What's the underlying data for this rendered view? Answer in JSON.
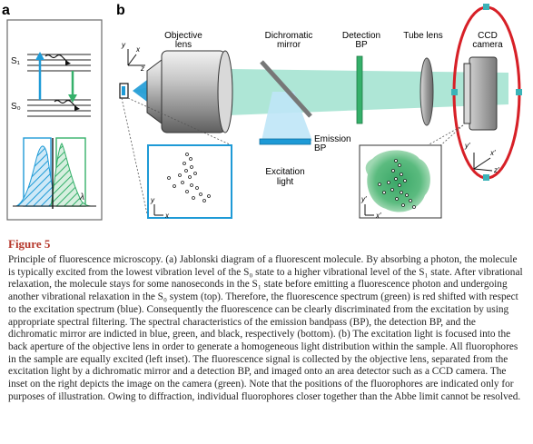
{
  "panel_a": {
    "letter": "a",
    "s1": "S₁",
    "s0": "S₀",
    "lambda": "λ",
    "colors": {
      "excitation": "#1f9bd7",
      "emission": "#35b06a",
      "box_border": "#6a6a6a"
    }
  },
  "panel_b": {
    "letter": "b",
    "labels": {
      "objective": [
        "Objective",
        "lens"
      ],
      "dichroic": [
        "Dichromatic",
        "mirror"
      ],
      "detection": [
        "Detection",
        "BP"
      ],
      "tube": "Tube lens",
      "ccd": [
        "CCD",
        "camera"
      ],
      "emission": [
        "Emission",
        "BP"
      ],
      "excitation": [
        "Excitation",
        "light"
      ]
    },
    "axes": {
      "x": "x",
      "y": "y",
      "z": "z",
      "xp": "x′",
      "yp": "y′",
      "zp": "z′"
    },
    "colors": {
      "beam": "#7fd3c0",
      "excitation": "#8fd0ef",
      "camera_ring": "#d72027",
      "inset_blue": "#1e9ad6",
      "inset_green": "#3aa667"
    }
  },
  "caption": {
    "title": "Figure 5",
    "body": "Principle of fluorescence microscopy. (a) Jablonski diagram of a fluorescent molecule. By absorbing a photon, the molecule is typically excited from the lowest vibration level of the S₀ state to a higher vibrational level of the S₁ state. After vibrational relaxation, the molecule stays for some nanoseconds in the S₁ state before emitting a fluorescence photon and undergoing another vibrational relaxation in the S₀ system (top). Therefore, the fluorescence spectrum (green) is red shifted with respect to the excitation spectrum (blue). Consequently the fluorescence can be clearly discriminated from the excitation by using appropriate spectral filtering. The spectral characteristics of the emission bandpass (BP), the detection BP, and the dichromatic mirror are indicted in blue, green, and black, respectively (bottom). (b) The excitation light is focused into the back aperture of the objective lens in order to generate a homogeneous light distribution within the sample. All fluorophores in the sample are equally excited (left inset). The fluorescence signal is collected by the objective lens, separated from the excitation light by a dichromatic mirror and a detection BP, and imaged onto an area detector such as a CCD camera. The inset on the right depicts the image on the camera (green). Note that the positions of the fluorophores are indicated only for purposes of illustration. Owing to diffraction, individual fluorophores closer together than the Abbe limit cannot be resolved."
  }
}
